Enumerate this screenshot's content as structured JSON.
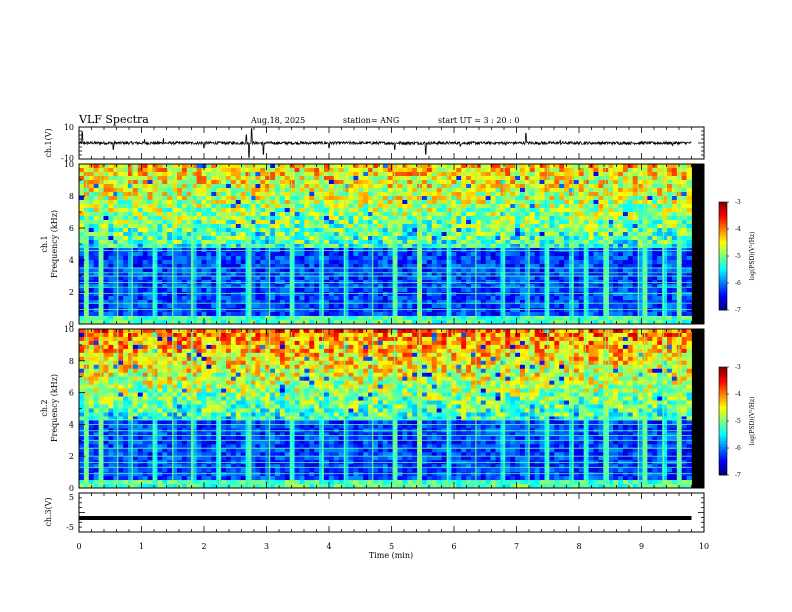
{
  "header": {
    "title": "VLF Spectra",
    "date": "Aug.18, 2025",
    "station": "station= ANG",
    "start": "start  UT =   3  : 20 : 0"
  },
  "chart_data": {
    "type": "heatmap",
    "title": "VLF Spectra",
    "xlabel": "Time  (min)",
    "xlim": [
      0,
      10
    ],
    "xticks": [
      "0",
      "1",
      "2",
      "3",
      "4",
      "5",
      "6",
      "7",
      "8",
      "9",
      "10"
    ],
    "data_end_min": 9.8,
    "panels": [
      {
        "id": "ch1-waveform",
        "type": "line",
        "ylabel": "ch.1(V)",
        "ylim": [
          -10,
          10
        ],
        "yticks": [
          "10",
          "-10"
        ],
        "baseline": 0,
        "spikes": [
          {
            "t": 0.05,
            "v": 7
          },
          {
            "t": 0.55,
            "v": -4
          },
          {
            "t": 1.05,
            "v": 2.5
          },
          {
            "t": 1.35,
            "v": 3
          },
          {
            "t": 2.0,
            "v": -3
          },
          {
            "t": 2.68,
            "v": 5
          },
          {
            "t": 2.72,
            "v": -9
          },
          {
            "t": 2.76,
            "v": 9
          },
          {
            "t": 2.95,
            "v": -7
          },
          {
            "t": 4.0,
            "v": -3
          },
          {
            "t": 5.05,
            "v": -4
          },
          {
            "t": 5.55,
            "v": -7
          },
          {
            "t": 6.1,
            "v": -2
          },
          {
            "t": 7.15,
            "v": 6
          },
          {
            "t": 7.7,
            "v": 2
          },
          {
            "t": 9.5,
            "v": -2
          }
        ]
      },
      {
        "id": "ch1-spectrogram",
        "type": "heatmap",
        "ylabel": "ch.1\nFrequency  (kHz)",
        "ylabel_lines": [
          "ch.1",
          "Frequency  (kHz)"
        ],
        "ylim": [
          0,
          10
        ],
        "yticks": [
          "0",
          "2",
          "4",
          "6",
          "8",
          "10"
        ],
        "colorbar": {
          "label": "log(PSD)(V²/Hz)",
          "range": [
            -7,
            -3
          ],
          "ticks": [
            "-3",
            "-4",
            "-5",
            "-6",
            "-7"
          ]
        },
        "low_band_top_khz": 4.8,
        "intensity": 0.55,
        "lines_khz": [
          0.3,
          0.9,
          1.3,
          1.9,
          2.3,
          2.6,
          3.0,
          3.2,
          3.5,
          4.6,
          4.8
        ],
        "impulses_min": [
          0.12,
          0.35,
          0.62,
          0.85,
          1.2,
          1.5,
          1.8,
          1.82,
          2.25,
          2.72,
          2.75,
          3.05,
          3.4,
          3.9,
          4.25,
          4.7,
          5.05,
          5.45,
          5.9,
          6.35,
          6.8,
          7.2,
          7.5,
          7.9,
          8.1,
          8.42,
          8.47,
          8.95,
          9.05,
          9.35,
          9.6
        ]
      },
      {
        "id": "ch2-spectrogram",
        "type": "heatmap",
        "ylabel": "ch.2\nFrequency  (kHz)",
        "ylabel_lines": [
          "ch.2",
          "Frequency  (kHz)"
        ],
        "ylim": [
          0,
          10
        ],
        "yticks": [
          "0",
          "2",
          "4",
          "6",
          "8",
          "10"
        ],
        "colorbar": {
          "label": "log(PSD)(V²/Hz)",
          "range": [
            -7,
            -3
          ],
          "ticks": [
            "-3",
            "-4",
            "-5",
            "-6",
            "-7"
          ]
        },
        "low_band_top_khz": 4.3,
        "intensity": 0.75,
        "lines_khz": [
          0.9,
          1.3,
          1.6,
          2.0,
          2.5,
          3.0,
          3.3,
          3.6,
          4.0,
          4.3
        ],
        "impulses_min": [
          0.12,
          0.35,
          0.62,
          0.85,
          1.2,
          1.5,
          1.8,
          1.82,
          2.25,
          2.72,
          2.75,
          3.05,
          3.4,
          3.9,
          4.25,
          4.7,
          5.05,
          5.45,
          5.9,
          6.35,
          6.8,
          7.2,
          7.5,
          7.9,
          8.1,
          8.42,
          8.47,
          8.95,
          9.05,
          9.35,
          9.6
        ]
      },
      {
        "id": "ch3-waveform",
        "type": "line",
        "ylabel": "ch.3(V)",
        "ylim": [
          -5,
          5
        ],
        "yticks": [
          "5",
          "-5"
        ],
        "baseline": -1.4
      }
    ]
  }
}
